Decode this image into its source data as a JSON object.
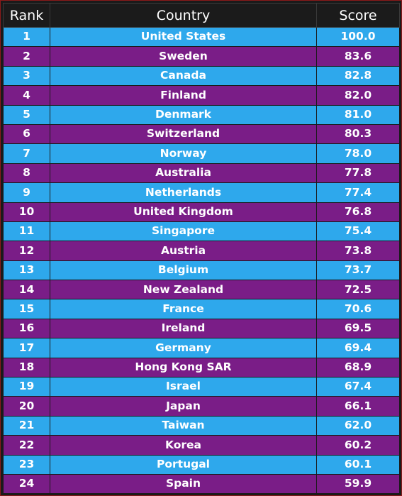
{
  "table": {
    "headers": {
      "rank": "Rank",
      "country": "Country",
      "score": "Score"
    },
    "colors": {
      "row_odd": "#2ea8ec",
      "row_even": "#7a1d87",
      "header_bg": "#1b1b1b",
      "border": "#8b1a1a"
    },
    "rows": [
      {
        "rank": "1",
        "country": "United States",
        "score": "100.0"
      },
      {
        "rank": "2",
        "country": "Sweden",
        "score": "83.6"
      },
      {
        "rank": "3",
        "country": "Canada",
        "score": "82.8"
      },
      {
        "rank": "4",
        "country": "Finland",
        "score": "82.0"
      },
      {
        "rank": "5",
        "country": "Denmark",
        "score": "81.0"
      },
      {
        "rank": "6",
        "country": "Switzerland",
        "score": "80.3"
      },
      {
        "rank": "7",
        "country": "Norway",
        "score": "78.0"
      },
      {
        "rank": "8",
        "country": "Australia",
        "score": "77.8"
      },
      {
        "rank": "9",
        "country": "Netherlands",
        "score": "77.4"
      },
      {
        "rank": "10",
        "country": "United Kingdom",
        "score": "76.8"
      },
      {
        "rank": "11",
        "country": "Singapore",
        "score": "75.4"
      },
      {
        "rank": "12",
        "country": "Austria",
        "score": "73.8"
      },
      {
        "rank": "13",
        "country": "Belgium",
        "score": "73.7"
      },
      {
        "rank": "14",
        "country": "New Zealand",
        "score": "72.5"
      },
      {
        "rank": "15",
        "country": "France",
        "score": "70.6"
      },
      {
        "rank": "16",
        "country": "Ireland",
        "score": "69.5"
      },
      {
        "rank": "17",
        "country": "Germany",
        "score": "69.4"
      },
      {
        "rank": "18",
        "country": "Hong Kong SAR",
        "score": "68.9"
      },
      {
        "rank": "19",
        "country": "Israel",
        "score": "67.4"
      },
      {
        "rank": "20",
        "country": "Japan",
        "score": "66.1"
      },
      {
        "rank": "21",
        "country": "Taiwan",
        "score": "62.0"
      },
      {
        "rank": "22",
        "country": "Korea",
        "score": "60.2"
      },
      {
        "rank": "23",
        "country": "Portugal",
        "score": "60.1"
      },
      {
        "rank": "24",
        "country": "Spain",
        "score": "59.9"
      }
    ]
  }
}
